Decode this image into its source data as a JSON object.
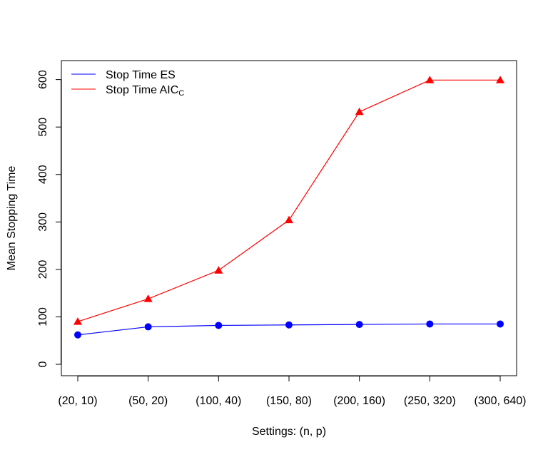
{
  "chart_data": {
    "type": "line",
    "title": "",
    "xlabel": "Settings: (n, p)",
    "ylabel": "Mean Stopping Time",
    "categories": [
      "(20, 10)",
      "(50, 20)",
      "(100, 40)",
      "(150, 80)",
      "(200, 160)",
      "(250, 320)",
      "(300, 640)"
    ],
    "ylim": [
      -24,
      640
    ],
    "yticks": [
      0,
      100,
      200,
      300,
      400,
      500,
      600
    ],
    "grid": false,
    "legend_position": "top-left",
    "series": [
      {
        "name": "Stop Time ES",
        "legend_label": "Stop Time ES",
        "legend_sub": "",
        "color": "#0000ff",
        "marker": "circle",
        "values": [
          62,
          79,
          82,
          83,
          84,
          85,
          85
        ]
      },
      {
        "name": "Stop Time AICC",
        "legend_label": "Stop Time AIC",
        "legend_sub": "C",
        "color": "#ff0000",
        "marker": "triangle",
        "values": [
          90,
          138,
          198,
          304,
          532,
          599,
          599
        ]
      }
    ]
  }
}
